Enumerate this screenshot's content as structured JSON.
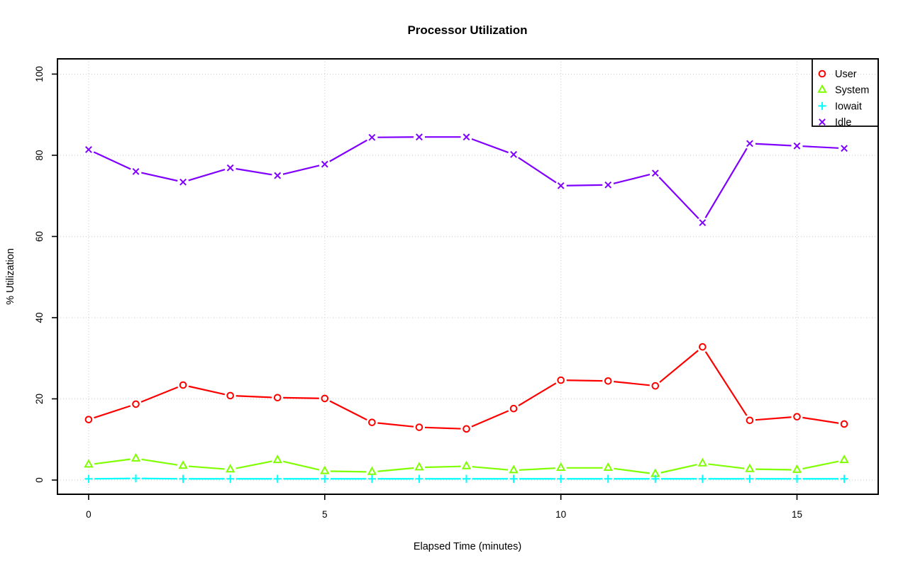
{
  "chart_data": {
    "type": "line",
    "title": "Processor Utilization",
    "xlabel": "Elapsed Time (minutes)",
    "ylabel": "% Utilization",
    "x": [
      0,
      1,
      2,
      3,
      4,
      5,
      6,
      7,
      8,
      9,
      10,
      11,
      12,
      13,
      14,
      15,
      16
    ],
    "xticks": [
      0,
      5,
      10,
      15
    ],
    "yticks": [
      0,
      20,
      40,
      60,
      80,
      100
    ],
    "xlim": [
      -0.66,
      16.72
    ],
    "ylim": [
      -3.5,
      103.75
    ],
    "grid": true,
    "grid_color": "#d3d3d3",
    "axis_color": "#000000",
    "legend_position": "topright",
    "series": [
      {
        "name": "User",
        "color": "#ff0000",
        "marker": "circle",
        "values": [
          14.9,
          18.7,
          23.4,
          20.8,
          20.3,
          20.1,
          14.2,
          13.0,
          12.6,
          17.6,
          24.6,
          24.4,
          23.2,
          32.8,
          14.7,
          15.6,
          13.8
        ]
      },
      {
        "name": "System",
        "color": "#80ff00",
        "marker": "triangle",
        "values": [
          3.8,
          5.3,
          3.5,
          2.6,
          4.9,
          2.2,
          2.0,
          3.1,
          3.4,
          2.4,
          3.0,
          3.0,
          1.5,
          4.1,
          2.7,
          2.5,
          4.9
        ]
      },
      {
        "name": "Iowait",
        "color": "#00ffff",
        "marker": "plus",
        "values": [
          0.3,
          0.4,
          0.3,
          0.3,
          0.3,
          0.3,
          0.3,
          0.3,
          0.3,
          0.3,
          0.3,
          0.3,
          0.3,
          0.3,
          0.3,
          0.3,
          0.3
        ]
      },
      {
        "name": "Idle",
        "color": "#8000ff",
        "marker": "x",
        "values": [
          81.4,
          76.0,
          73.4,
          76.9,
          75.0,
          77.8,
          84.4,
          84.5,
          84.5,
          80.2,
          72.5,
          72.7,
          75.6,
          63.4,
          82.9,
          82.3,
          81.7
        ]
      }
    ]
  }
}
